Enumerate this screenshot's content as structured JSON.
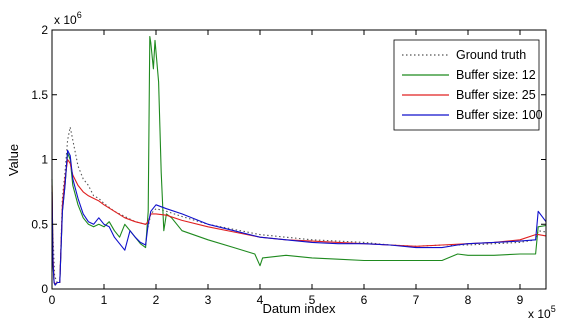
{
  "chart_data": {
    "type": "line",
    "title": "",
    "xlabel": "Datum index",
    "ylabel": "Value",
    "x_multiplier": "x 10",
    "x_exponent": "5",
    "y_multiplier": "x 10",
    "y_exponent": "6",
    "xlim": [
      0,
      9.5
    ],
    "ylim": [
      0,
      2
    ],
    "xticks": [
      "0",
      "1",
      "2",
      "3",
      "4",
      "5",
      "6",
      "7",
      "8",
      "9"
    ],
    "yticks": [
      "0",
      "0.5",
      "1",
      "1.5",
      "2"
    ],
    "grid": false,
    "legend_position": "top-right",
    "series": [
      {
        "name": "Ground truth",
        "color": "#555555",
        "style": "dotted",
        "x": [
          0,
          0.03,
          0.05,
          0.1,
          0.15,
          0.2,
          0.25,
          0.3,
          0.35,
          0.4,
          0.5,
          0.6,
          0.7,
          0.8,
          0.9,
          1.0,
          1.2,
          1.4,
          1.6,
          1.8,
          1.85,
          1.9,
          2.0,
          2.2,
          2.5,
          3.0,
          3.5,
          4.0,
          4.5,
          5.0,
          5.5,
          6.0,
          6.5,
          7.0,
          7.5,
          8.0,
          8.5,
          9.0,
          9.3,
          9.35,
          9.5
        ],
        "y": [
          0.55,
          0.3,
          0.1,
          0.05,
          0.05,
          0.7,
          0.9,
          1.15,
          1.25,
          1.15,
          0.95,
          0.85,
          0.8,
          0.72,
          0.7,
          0.66,
          0.6,
          0.56,
          0.52,
          0.5,
          0.48,
          0.58,
          0.62,
          0.6,
          0.56,
          0.5,
          0.46,
          0.42,
          0.4,
          0.38,
          0.37,
          0.36,
          0.34,
          0.33,
          0.34,
          0.34,
          0.35,
          0.36,
          0.38,
          0.45,
          0.44
        ]
      },
      {
        "name": "Buffer size: 12",
        "color": "#1f8a1f",
        "style": "solid",
        "x": [
          0,
          0.02,
          0.04,
          0.06,
          0.1,
          0.15,
          0.2,
          0.25,
          0.3,
          0.35,
          0.4,
          0.5,
          0.6,
          0.7,
          0.8,
          0.9,
          1.0,
          1.1,
          1.2,
          1.3,
          1.4,
          1.5,
          1.6,
          1.7,
          1.8,
          1.85,
          1.88,
          1.9,
          1.95,
          1.98,
          2.05,
          2.1,
          2.15,
          2.2,
          2.3,
          2.5,
          3.0,
          3.5,
          3.9,
          4.0,
          4.05,
          4.5,
          5.0,
          5.5,
          6.0,
          6.5,
          7.0,
          7.5,
          7.8,
          8.0,
          8.5,
          9.0,
          9.3,
          9.35,
          9.5
        ],
        "y": [
          0.85,
          0.2,
          0.05,
          0.03,
          0.05,
          0.05,
          0.6,
          0.8,
          1.05,
          1.0,
          0.8,
          0.65,
          0.55,
          0.5,
          0.48,
          0.5,
          0.48,
          0.52,
          0.45,
          0.4,
          0.5,
          0.45,
          0.4,
          0.35,
          0.32,
          0.6,
          1.95,
          1.9,
          1.7,
          1.92,
          1.6,
          0.9,
          0.45,
          0.58,
          0.55,
          0.45,
          0.38,
          0.32,
          0.27,
          0.18,
          0.24,
          0.26,
          0.24,
          0.23,
          0.22,
          0.22,
          0.22,
          0.22,
          0.27,
          0.26,
          0.26,
          0.27,
          0.27,
          0.48,
          0.49
        ]
      },
      {
        "name": "Buffer size: 25",
        "color": "#e02020",
        "style": "solid",
        "x": [
          0,
          0.02,
          0.04,
          0.06,
          0.1,
          0.15,
          0.2,
          0.25,
          0.3,
          0.35,
          0.4,
          0.5,
          0.6,
          0.7,
          0.8,
          0.9,
          1.0,
          1.2,
          1.4,
          1.6,
          1.8,
          1.85,
          1.9,
          2.0,
          2.2,
          2.5,
          3.0,
          3.5,
          4.0,
          4.5,
          5.0,
          5.5,
          6.0,
          6.5,
          7.0,
          7.5,
          8.0,
          8.5,
          9.0,
          9.3,
          9.35,
          9.5
        ],
        "y": [
          0.8,
          0.25,
          0.05,
          0.04,
          0.05,
          0.05,
          0.65,
          0.85,
          1.0,
          0.97,
          0.88,
          0.8,
          0.75,
          0.72,
          0.7,
          0.68,
          0.65,
          0.6,
          0.55,
          0.52,
          0.5,
          0.52,
          0.58,
          0.58,
          0.57,
          0.53,
          0.48,
          0.44,
          0.4,
          0.38,
          0.37,
          0.36,
          0.35,
          0.34,
          0.33,
          0.34,
          0.35,
          0.36,
          0.38,
          0.42,
          0.42,
          0.41
        ]
      },
      {
        "name": "Buffer size: 100",
        "color": "#1010cc",
        "style": "solid",
        "x": [
          0,
          0.02,
          0.04,
          0.06,
          0.1,
          0.15,
          0.2,
          0.25,
          0.3,
          0.35,
          0.4,
          0.5,
          0.6,
          0.7,
          0.8,
          0.9,
          1.0,
          1.1,
          1.2,
          1.3,
          1.4,
          1.5,
          1.6,
          1.7,
          1.8,
          1.85,
          1.9,
          2.0,
          2.2,
          2.5,
          3.0,
          3.5,
          4.0,
          4.5,
          5.0,
          5.5,
          6.0,
          6.5,
          7.0,
          7.5,
          7.8,
          8.0,
          8.5,
          9.0,
          9.3,
          9.35,
          9.5
        ],
        "y": [
          0.75,
          0.2,
          0.05,
          0.03,
          0.05,
          0.05,
          0.6,
          0.8,
          1.07,
          1.03,
          0.85,
          0.7,
          0.58,
          0.52,
          0.5,
          0.55,
          0.5,
          0.48,
          0.4,
          0.35,
          0.3,
          0.45,
          0.4,
          0.36,
          0.34,
          0.5,
          0.6,
          0.65,
          0.62,
          0.58,
          0.5,
          0.45,
          0.4,
          0.38,
          0.36,
          0.35,
          0.35,
          0.34,
          0.32,
          0.32,
          0.34,
          0.35,
          0.36,
          0.37,
          0.38,
          0.6,
          0.52
        ]
      }
    ]
  }
}
